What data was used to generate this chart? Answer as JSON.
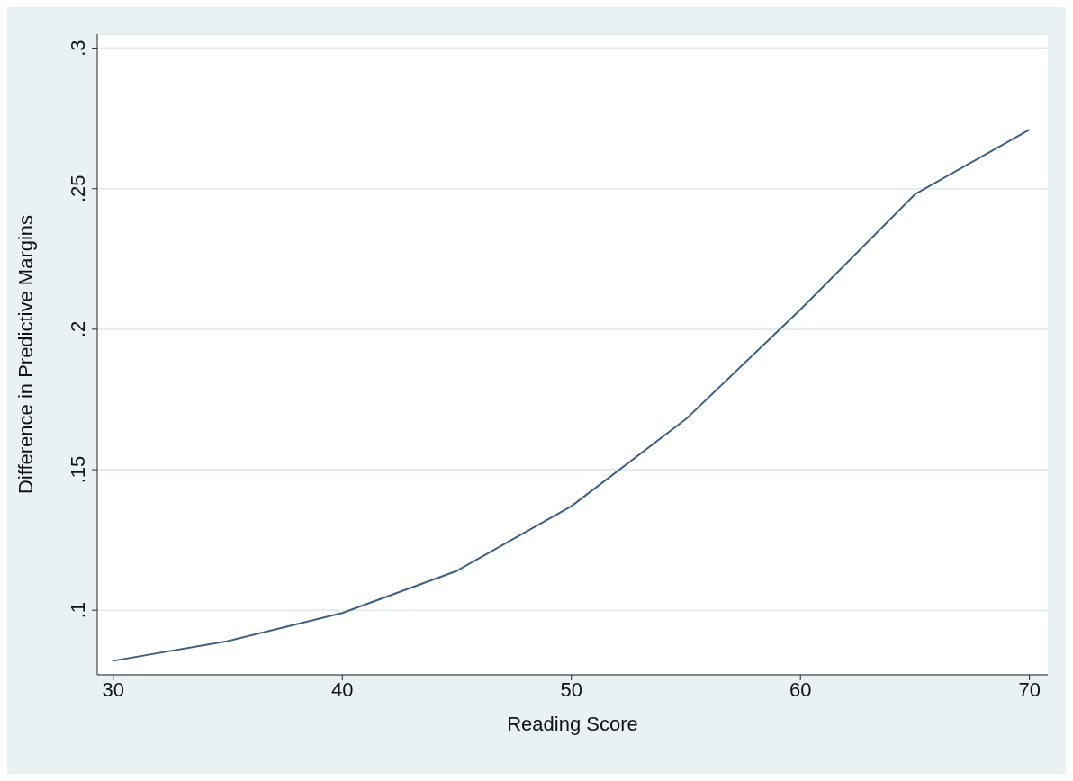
{
  "chart_data": {
    "type": "line",
    "xlabel": "Reading Score",
    "ylabel": "Difference in Predictive Margins",
    "x": [
      30,
      35,
      40,
      45,
      50,
      55,
      60,
      65,
      70
    ],
    "series": [
      {
        "color": "#3e5f80",
        "values": [
          0.082,
          0.089,
          0.099,
          0.114,
          0.137,
          0.168,
          0.207,
          0.248,
          0.271
        ]
      }
    ],
    "xlim": [
      29.3,
      70.8
    ],
    "xticks": [
      30,
      40,
      50,
      60,
      70
    ],
    "ylim": [
      0.077,
      0.305
    ],
    "yticks": [
      {
        "value": 0.1,
        "label": ".1"
      },
      {
        "value": 0.15,
        "label": ".15"
      },
      {
        "value": 0.2,
        "label": ".2"
      },
      {
        "value": 0.25,
        "label": ".25"
      },
      {
        "value": 0.3,
        "label": ".3"
      }
    ],
    "grid": "y",
    "marker": "none",
    "line_style": "solid"
  }
}
